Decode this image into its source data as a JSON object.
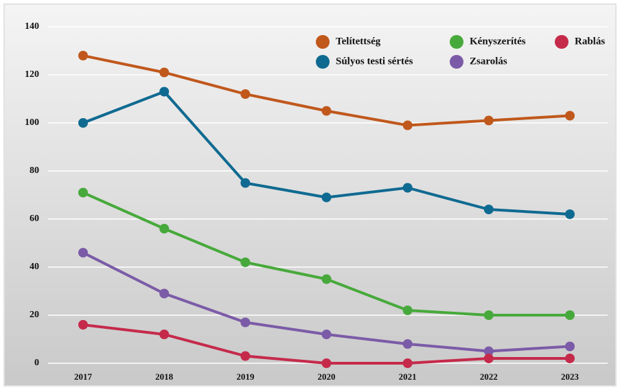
{
  "chart_data": {
    "type": "line",
    "categories": [
      "2017",
      "2018",
      "2019",
      "2020",
      "2021",
      "2022",
      "2023"
    ],
    "series": [
      {
        "name": "Telítettség",
        "color": "#c0581c",
        "values": [
          128,
          121,
          112,
          105,
          99,
          101,
          103
        ]
      },
      {
        "name": "Súlyos testi sértés",
        "color": "#0f6a91",
        "values": [
          100,
          113,
          75,
          69,
          73,
          64,
          62
        ]
      },
      {
        "name": "Kényszerítés",
        "color": "#47a93b",
        "values": [
          71,
          56,
          42,
          35,
          22,
          20,
          20
        ]
      },
      {
        "name": "Zsarolás",
        "color": "#7b5ba7",
        "values": [
          46,
          29,
          17,
          12,
          8,
          5,
          7
        ]
      },
      {
        "name": "Rablás",
        "color": "#c52a4b",
        "values": [
          16,
          12,
          3,
          0,
          0,
          2,
          2
        ]
      }
    ],
    "ylim": [
      0,
      140
    ],
    "yticks": [
      0,
      20,
      40,
      60,
      80,
      100,
      120,
      140
    ],
    "grid": true,
    "legend": "top-right"
  }
}
